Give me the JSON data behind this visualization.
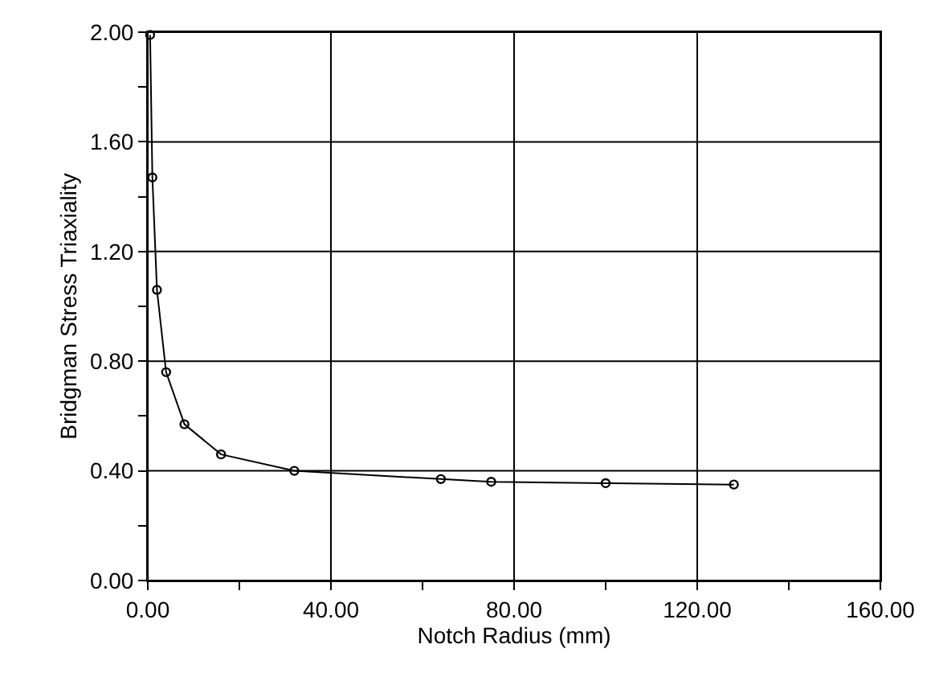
{
  "chart_data": {
    "type": "line",
    "xlabel": "Notch Radius (mm)",
    "ylabel": "Bridgman Stress Triaxiality",
    "x": [
      0.5,
      1,
      2,
      4,
      8,
      16,
      32,
      64,
      75,
      100,
      128
    ],
    "series": [
      {
        "color": "#000000",
        "values": [
          1.99,
          1.47,
          1.06,
          0.76,
          0.57,
          0.46,
          0.4,
          0.37,
          0.36,
          0.355,
          0.35
        ]
      }
    ],
    "xlim": [
      0,
      160
    ],
    "xticks": [
      {
        "value": 0,
        "label": "0.00"
      },
      {
        "value": 20,
        "label": null
      },
      {
        "value": 40,
        "label": "40.00"
      },
      {
        "value": 60,
        "label": null
      },
      {
        "value": 80,
        "label": "80.00"
      },
      {
        "value": 100,
        "label": null
      },
      {
        "value": 120,
        "label": "120.00"
      },
      {
        "value": 140,
        "label": null
      },
      {
        "value": 160,
        "label": "160.00"
      }
    ],
    "ylim": [
      0,
      2
    ],
    "yticks": [
      {
        "value": 0,
        "label": "0.00"
      },
      {
        "value": 0.2,
        "label": null
      },
      {
        "value": 0.4,
        "label": "0.40"
      },
      {
        "value": 0.6,
        "label": null
      },
      {
        "value": 0.8,
        "label": "0.80"
      },
      {
        "value": 1.0,
        "label": null
      },
      {
        "value": 1.2,
        "label": "1.20"
      },
      {
        "value": 1.4,
        "label": null
      },
      {
        "value": 1.6,
        "label": "1.60"
      },
      {
        "value": 1.8,
        "label": null
      },
      {
        "value": 2,
        "label": "2.00"
      }
    ],
    "grid": true,
    "marker": "circle",
    "line_style": "solid",
    "legend": false
  }
}
